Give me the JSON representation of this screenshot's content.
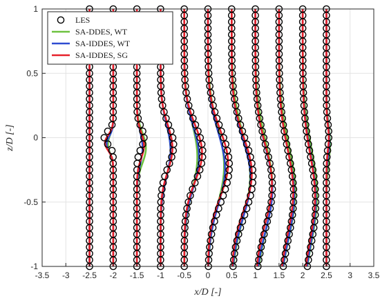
{
  "chart_data": {
    "type": "line",
    "xlabel": "x/D [-]",
    "ylabel": "z/D [-]",
    "xlim": [
      -3.5,
      3.5
    ],
    "ylim": [
      -1,
      1
    ],
    "xticks": [
      "-3.5",
      "-3",
      "-2.5",
      "-2",
      "-1.5",
      "-1",
      "-0.5",
      "0",
      "0.5",
      "1",
      "1.5",
      "2",
      "2.5",
      "3",
      "3.5"
    ],
    "yticks": [
      "-1",
      "-0.5",
      "0",
      "0.5",
      "1"
    ],
    "grid": true,
    "legend_position": "top-left",
    "stations": [
      -2.5,
      -2,
      -1.5,
      -1,
      -0.5,
      0,
      0.5,
      1,
      1.5,
      2,
      2.5
    ],
    "series": [
      {
        "name": "LES",
        "style": "circle-markers",
        "color": "#000000",
        "deficits": [
          0.0,
          0.38,
          0.3,
          0.55,
          0.78,
          0.9,
          0.9,
          0.72,
          0.62,
          0.55,
          0.1
        ],
        "centers": [
          0.0,
          0.0,
          0.0,
          -0.06,
          -0.12,
          -0.22,
          -0.3,
          -0.38,
          -0.45,
          -0.5,
          0.02
        ],
        "widths": [
          0.0,
          0.05,
          0.08,
          0.16,
          0.22,
          0.28,
          0.3,
          0.32,
          0.35,
          0.35,
          0.1
        ]
      },
      {
        "name": "SA-DDES, WT",
        "style": "line",
        "color": "#6dc13f",
        "deficits": [
          0.0,
          0.22,
          0.38,
          0.42,
          0.55,
          0.68,
          0.78,
          0.72,
          0.68,
          0.6,
          0.15
        ],
        "centers": [
          0.0,
          -0.05,
          -0.08,
          -0.1,
          -0.15,
          -0.22,
          -0.3,
          -0.38,
          -0.42,
          -0.45,
          -0.05
        ],
        "widths": [
          0.0,
          0.07,
          0.12,
          0.2,
          0.26,
          0.3,
          0.33,
          0.35,
          0.36,
          0.37,
          0.15
        ]
      },
      {
        "name": "SA-IDDES, WT",
        "style": "line",
        "color": "#2e4bd1",
        "deficits": [
          0.0,
          0.28,
          0.24,
          0.42,
          0.62,
          0.72,
          0.8,
          0.72,
          0.64,
          0.55,
          0.12
        ],
        "centers": [
          0.0,
          -0.05,
          -0.08,
          -0.1,
          -0.15,
          -0.24,
          -0.32,
          -0.4,
          -0.45,
          -0.48,
          -0.02
        ],
        "widths": [
          0.0,
          0.06,
          0.12,
          0.2,
          0.24,
          0.28,
          0.3,
          0.32,
          0.34,
          0.35,
          0.12
        ]
      },
      {
        "name": "SA-IDDES, SG",
        "style": "line",
        "color": "#e6202a",
        "deficits": [
          0.0,
          0.35,
          0.3,
          0.5,
          0.75,
          0.85,
          0.85,
          0.7,
          0.6,
          0.52,
          0.1
        ],
        "centers": [
          0.0,
          -0.04,
          -0.06,
          -0.08,
          -0.12,
          -0.2,
          -0.28,
          -0.36,
          -0.42,
          -0.46,
          0.0
        ],
        "widths": [
          0.0,
          0.06,
          0.1,
          0.18,
          0.22,
          0.26,
          0.28,
          0.3,
          0.33,
          0.33,
          0.1
        ]
      }
    ]
  }
}
